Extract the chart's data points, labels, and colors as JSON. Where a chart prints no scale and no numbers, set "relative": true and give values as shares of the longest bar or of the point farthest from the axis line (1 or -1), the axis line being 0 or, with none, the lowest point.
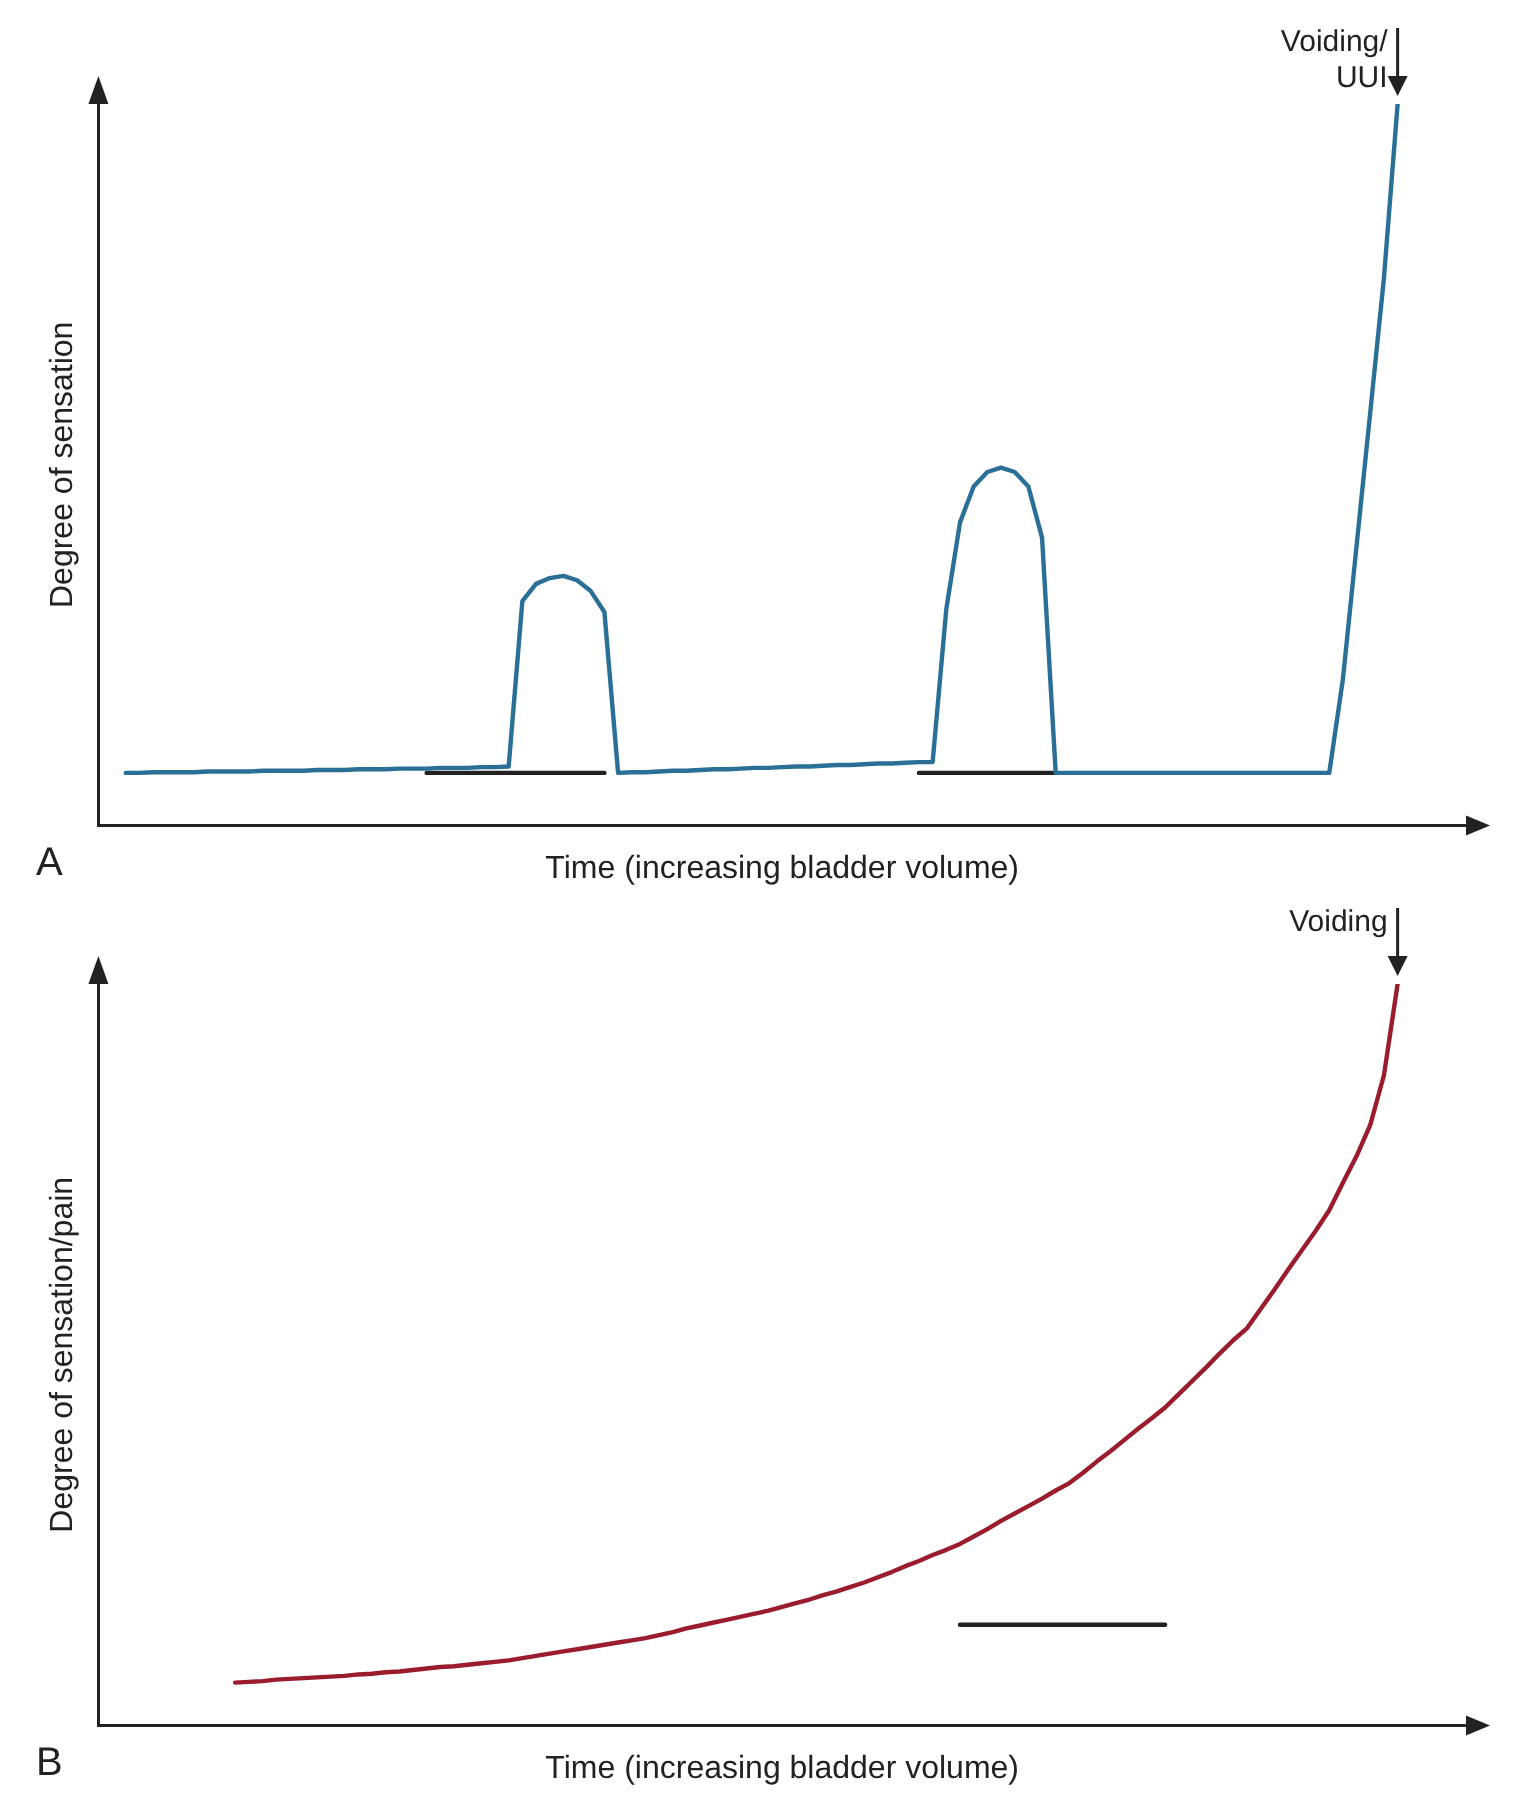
{
  "chart_data": [
    {
      "type": "line",
      "relative": true,
      "xlabel": "Time (increasing bladder volume)",
      "ylabel": "Degree of sensation",
      "tick_labels": false,
      "grid": false,
      "legend": false,
      "marker": "none",
      "line_style": "solid",
      "categories": [
        null,
        null,
        null,
        null,
        null,
        null,
        null,
        null,
        null,
        null,
        null,
        null,
        null,
        null,
        null,
        null,
        null,
        null,
        null,
        null,
        null,
        null,
        null,
        null,
        null,
        null,
        null,
        null,
        null,
        null,
        null,
        null,
        null,
        null,
        null,
        null,
        null,
        null,
        null,
        null,
        null,
        null,
        null,
        null,
        null,
        null,
        null,
        null,
        null,
        null,
        null,
        null,
        null,
        null,
        null,
        null,
        null,
        null,
        null,
        null,
        null,
        null,
        null,
        null,
        null,
        null,
        null,
        null,
        null,
        null,
        null,
        null,
        null,
        null,
        null,
        null,
        null,
        null,
        null,
        null,
        null,
        null,
        null,
        null,
        null,
        null,
        null,
        null,
        null,
        null,
        null,
        null,
        null,
        null,
        null,
        null,
        null,
        null,
        null,
        null,
        null
      ],
      "series": [
        {
          "color": "#2a6f97",
          "values": [
            null,
            null,
            0.073,
            0.073,
            0.074,
            0.074,
            0.074,
            0.074,
            0.075,
            0.075,
            0.075,
            0.075,
            0.076,
            0.076,
            0.076,
            0.076,
            0.077,
            0.077,
            0.077,
            0.078,
            0.078,
            0.078,
            0.079,
            0.079,
            0.079,
            0.08,
            0.08,
            0.08,
            0.081,
            0.081,
            0.082,
            0.311,
            0.335,
            0.343,
            0.346,
            0.34,
            0.325,
            0.296,
            0.073,
            0.074,
            0.074,
            0.075,
            0.076,
            0.076,
            0.077,
            0.078,
            0.078,
            0.079,
            0.08,
            0.08,
            0.081,
            0.082,
            0.082,
            0.083,
            0.084,
            0.084,
            0.085,
            0.086,
            0.086,
            0.087,
            0.088,
            0.088,
            0.3,
            0.42,
            0.47,
            0.49,
            0.496,
            0.49,
            0.47,
            0.399,
            0.073,
            0.073,
            0.073,
            0.073,
            0.073,
            0.073,
            0.073,
            0.073,
            0.073,
            0.073,
            0.073,
            0.073,
            0.073,
            0.073,
            0.073,
            0.073,
            0.073,
            0.073,
            0.073,
            0.073,
            0.073,
            0.203,
            0.388,
            0.573,
            0.759,
            1,
            null,
            null,
            null,
            null,
            null
          ]
        },
        {
          "color": "#222222",
          "values": [
            null,
            null,
            null,
            null,
            null,
            null,
            null,
            null,
            null,
            null,
            null,
            null,
            null,
            null,
            null,
            null,
            null,
            null,
            null,
            null,
            null,
            null,
            null,
            null,
            0.073,
            0.073,
            0.073,
            0.073,
            0.073,
            0.073,
            0.073,
            0.073,
            0.073,
            0.073,
            0.073,
            0.073,
            0.073,
            0.073,
            null,
            null,
            null,
            null,
            null,
            null,
            null,
            null,
            null,
            null,
            null,
            null,
            null,
            null,
            null,
            null,
            null,
            null,
            null,
            null,
            null,
            null,
            null,
            null,
            null,
            null,
            null,
            null,
            null,
            null,
            null,
            null,
            null,
            null,
            null,
            null,
            null,
            null,
            null,
            null,
            null,
            null,
            null,
            null,
            null,
            null,
            null,
            null,
            null,
            null,
            null,
            null,
            null,
            null,
            null,
            null,
            null,
            null,
            null,
            null,
            null,
            null,
            null
          ]
        },
        {
          "color": "#222222",
          "values": [
            null,
            null,
            null,
            null,
            null,
            null,
            null,
            null,
            null,
            null,
            null,
            null,
            null,
            null,
            null,
            null,
            null,
            null,
            null,
            null,
            null,
            null,
            null,
            null,
            null,
            null,
            null,
            null,
            null,
            null,
            null,
            null,
            null,
            null,
            null,
            null,
            null,
            null,
            null,
            null,
            null,
            null,
            null,
            null,
            null,
            null,
            null,
            null,
            null,
            null,
            null,
            null,
            null,
            null,
            null,
            null,
            null,
            null,
            null,
            null,
            0.073,
            0.073,
            0.073,
            0.073,
            0.073,
            0.073,
            0.073,
            0.073,
            0.073,
            0.073,
            0.073,
            null,
            null,
            null,
            null,
            null,
            null,
            null,
            null,
            null,
            null,
            null,
            null,
            null,
            null,
            null,
            null,
            null,
            null,
            null,
            null,
            null,
            null,
            null,
            null,
            null,
            null,
            null,
            null,
            null,
            null
          ]
        }
      ],
      "annotations": [
        "Voiding/ UUI",
        "A"
      ]
    },
    {
      "type": "line",
      "relative": true,
      "xlabel": "Time (increasing bladder volume)",
      "ylabel": "Degree of sensation/pain",
      "tick_labels": false,
      "grid": false,
      "legend": false,
      "marker": "none",
      "line_style": "solid",
      "categories": [
        null,
        null,
        null,
        null,
        null,
        null,
        null,
        null,
        null,
        null,
        null,
        null,
        null,
        null,
        null,
        null,
        null,
        null,
        null,
        null,
        null,
        null,
        null,
        null,
        null,
        null,
        null,
        null,
        null,
        null,
        null,
        null,
        null,
        null,
        null,
        null,
        null,
        null,
        null,
        null,
        null,
        null,
        null,
        null,
        null,
        null,
        null,
        null,
        null,
        null,
        null,
        null,
        null,
        null,
        null,
        null,
        null,
        null,
        null,
        null,
        null,
        null,
        null,
        null,
        null,
        null,
        null,
        null,
        null,
        null,
        null,
        null,
        null,
        null,
        null,
        null,
        null,
        null,
        null,
        null,
        null,
        null,
        null,
        null,
        null,
        null,
        null,
        null,
        null,
        null,
        null,
        null,
        null,
        null,
        null,
        null,
        null,
        null,
        null,
        null,
        null
      ],
      "series": [
        {
          "color": "#9b1c2c",
          "values": [
            null,
            null,
            null,
            null,
            null,
            null,
            null,
            null,
            null,
            null,
            0.058,
            0.059,
            0.06,
            0.062,
            0.063,
            0.064,
            0.065,
            0.066,
            0.067,
            0.069,
            0.07,
            0.072,
            0.073,
            0.075,
            0.077,
            0.079,
            0.08,
            0.082,
            0.084,
            0.086,
            0.088,
            0.091,
            0.094,
            0.097,
            0.1,
            0.103,
            0.106,
            0.109,
            0.112,
            0.115,
            0.118,
            0.122,
            0.126,
            0.131,
            0.135,
            0.139,
            0.143,
            0.147,
            0.151,
            0.155,
            0.16,
            0.165,
            0.17,
            0.176,
            0.181,
            0.187,
            0.193,
            0.2,
            0.207,
            0.215,
            0.222,
            0.23,
            0.237,
            0.245,
            0.255,
            0.265,
            0.276,
            0.286,
            0.296,
            0.306,
            0.317,
            0.327,
            0.341,
            0.356,
            0.37,
            0.385,
            0.4,
            0.414,
            0.429,
            0.447,
            0.465,
            0.483,
            0.502,
            0.52,
            0.536,
            0.562,
            0.588,
            0.615,
            0.641,
            0.667,
            0.695,
            0.732,
            0.768,
            0.81,
            0.877,
            1,
            null,
            null,
            null,
            null,
            null
          ]
        },
        {
          "color": "#222222",
          "values": [
            null,
            null,
            null,
            null,
            null,
            null,
            null,
            null,
            null,
            null,
            null,
            null,
            null,
            null,
            null,
            null,
            null,
            null,
            null,
            null,
            null,
            null,
            null,
            null,
            null,
            null,
            null,
            null,
            null,
            null,
            null,
            null,
            null,
            null,
            null,
            null,
            null,
            null,
            null,
            null,
            null,
            null,
            null,
            null,
            null,
            null,
            null,
            null,
            null,
            null,
            null,
            null,
            null,
            null,
            null,
            null,
            null,
            null,
            null,
            null,
            null,
            null,
            null,
            0.136,
            0.136,
            0.136,
            0.136,
            0.136,
            0.136,
            0.136,
            0.136,
            0.136,
            0.136,
            0.136,
            0.136,
            0.136,
            0.136,
            0.136,
            0.136,
            null,
            null,
            null,
            null,
            null,
            null,
            null,
            null,
            null,
            null,
            null,
            null,
            null,
            null,
            null,
            null,
            null,
            null,
            null,
            null,
            null,
            null
          ]
        }
      ],
      "annotations": [
        "Voiding",
        "B"
      ]
    }
  ]
}
